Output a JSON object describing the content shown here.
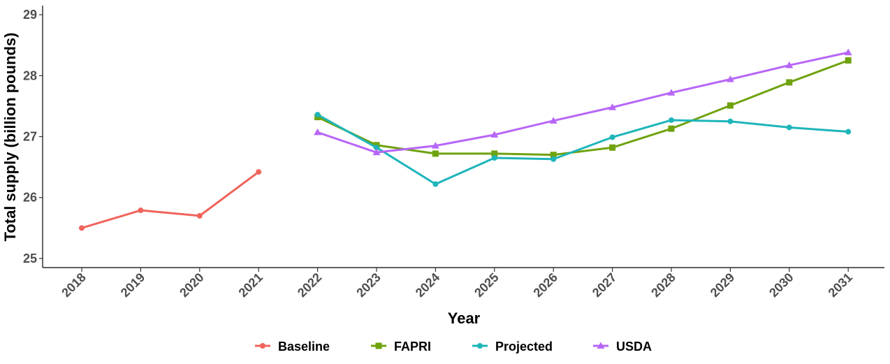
{
  "chart_data": {
    "type": "line",
    "title": "",
    "xlabel": "Year",
    "ylabel": "Total supply (billion pounds)",
    "x": [
      "2018",
      "2019",
      "2020",
      "2021",
      "2022",
      "2023",
      "2024",
      "2025",
      "2026",
      "2027",
      "2028",
      "2029",
      "2030",
      "2031"
    ],
    "ylim": [
      24.85,
      29.15
    ],
    "yticks": [
      25,
      26,
      27,
      28,
      29
    ],
    "grid": false,
    "legend_position": "bottom",
    "series": [
      {
        "name": "Baseline",
        "color": "#F0645C",
        "marker": "circle",
        "x": [
          "2018",
          "2019",
          "2020",
          "2021"
        ],
        "values": [
          25.5,
          25.79,
          25.7,
          26.42
        ]
      },
      {
        "name": "FAPRI",
        "color": "#6FA20E",
        "marker": "square",
        "x": [
          "2022",
          "2023",
          "2024",
          "2025",
          "2026",
          "2027",
          "2028",
          "2029",
          "2030",
          "2031"
        ],
        "values": [
          27.32,
          26.86,
          26.72,
          26.72,
          26.7,
          26.82,
          27.13,
          27.51,
          27.89,
          28.25
        ]
      },
      {
        "name": "Projected",
        "color": "#1EB5BA",
        "marker": "circle",
        "x": [
          "2022",
          "2023",
          "2024",
          "2025",
          "2026",
          "2027",
          "2028",
          "2029",
          "2030",
          "2031"
        ],
        "values": [
          27.36,
          26.82,
          26.22,
          26.65,
          26.63,
          26.99,
          27.27,
          27.25,
          27.15,
          27.08
        ]
      },
      {
        "name": "USDA",
        "color": "#B766F7",
        "marker": "triangle",
        "x": [
          "2022",
          "2023",
          "2024",
          "2025",
          "2026",
          "2027",
          "2028",
          "2029",
          "2030",
          "2031"
        ],
        "values": [
          27.07,
          26.74,
          26.85,
          27.03,
          27.26,
          27.48,
          27.72,
          27.94,
          28.17,
          28.38
        ]
      }
    ]
  }
}
